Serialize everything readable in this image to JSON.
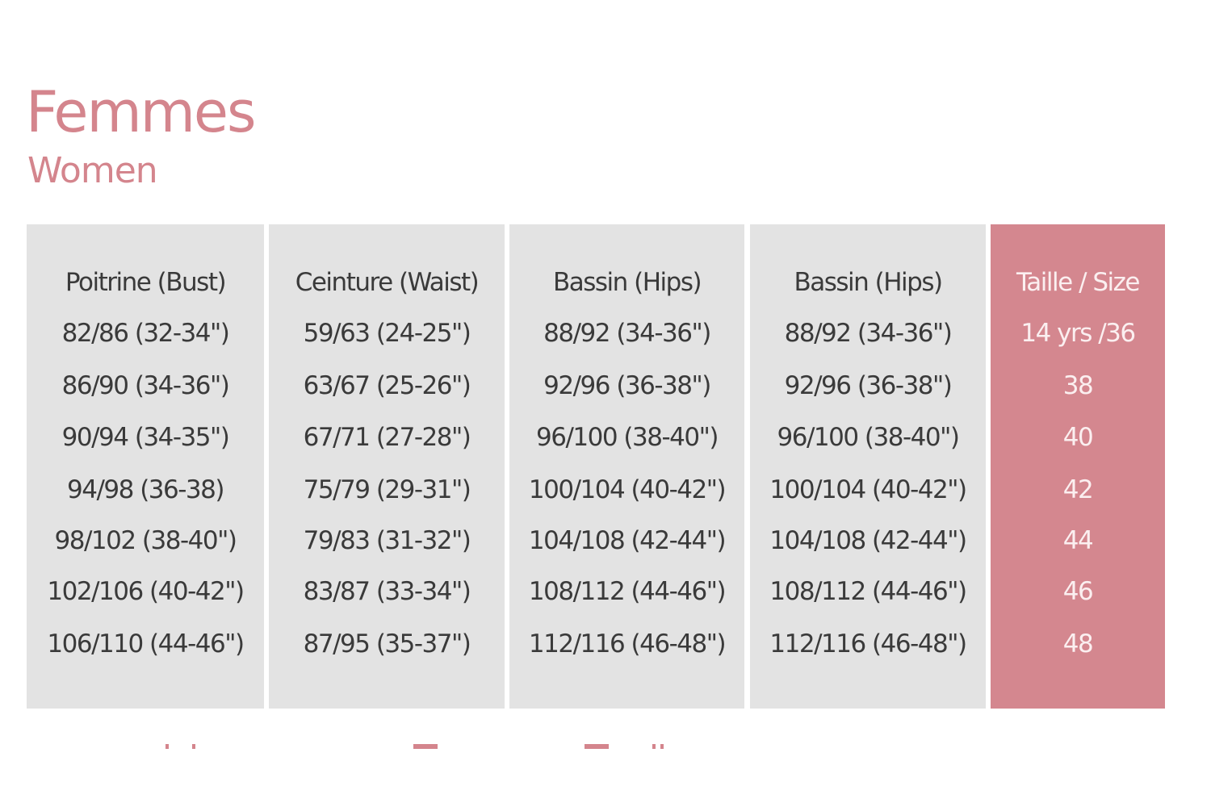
{
  "heading": {
    "title": "Femmes",
    "subtitle": "Women"
  },
  "colors": {
    "accent": "#d4878f",
    "table_bg": "#e3e3e3",
    "text": "#3a3a3a"
  },
  "table": {
    "columns": [
      {
        "header": "Poitrine (Bust)",
        "values": [
          "82/86 (32-34\")",
          "86/90 (34-36\")",
          "90/94 (34-35\")",
          "94/98 (36-38)",
          "98/102 (38-40\")",
          "102/106 (40-42\")",
          "106/110 (44-46\")"
        ]
      },
      {
        "header": "Ceinture (Waist)",
        "values": [
          "59/63 (24-25\")",
          "63/67 (25-26\")",
          "67/71 (27-28\")",
          "75/79 (29-31\")",
          "79/83 (31-32\")",
          "83/87 (33-34\")",
          "87/95 (35-37\")"
        ]
      },
      {
        "header": "Bassin (Hips)",
        "values": [
          "88/92 (34-36\")",
          "92/96 (36-38\")",
          "96/100 (38-40\")",
          "100/104 (40-42\")",
          "104/108 (42-44\")",
          "108/112 (44-46\")",
          "112/116 (46-48\")"
        ]
      },
      {
        "header": "Bassin (Hips)",
        "values": [
          "88/92 (34-36\")",
          "92/96 (36-38\")",
          "96/100 (38-40\")",
          "100/104 (40-42\")",
          "104/108 (42-44\")",
          "108/112 (44-46\")",
          "112/116 (46-48\")"
        ]
      },
      {
        "header": "Taille / Size",
        "values": [
          "14 yrs /36",
          "38",
          "40",
          "42",
          "44",
          "46",
          "48"
        ]
      }
    ]
  }
}
